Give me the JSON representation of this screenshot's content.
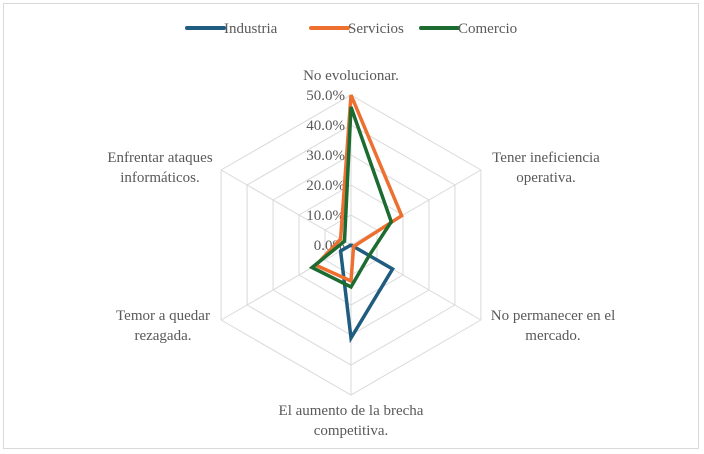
{
  "chart_data": {
    "type": "radar",
    "title": "",
    "categories": [
      "No evolucionar.",
      "Tener ineficiencia operativa.",
      "No permanecer en el mercado.",
      "El aumento de la brecha competitiva.",
      "Temor a quedar rezagada.",
      "Enfrentar ataques informáticos."
    ],
    "category_lines": [
      [
        "No evolucionar."
      ],
      [
        "Tener ineficiencia",
        "operativa."
      ],
      [
        "No permanecer en el",
        "mercado."
      ],
      [
        "El aumento de la brecha",
        "competitiva."
      ],
      [
        "Temor a quedar",
        "rezagada."
      ],
      [
        "Enfrentar ataques",
        "informáticos."
      ]
    ],
    "series": [
      {
        "name": "Industria",
        "color": "#1f5c7f",
        "values": [
          0.5,
          0.0,
          16.0,
          31.0,
          4.0,
          0.0
        ]
      },
      {
        "name": "Servicios",
        "color": "#ed7031",
        "values": [
          50.0,
          19.5,
          1.0,
          12.0,
          13.5,
          4.0
        ]
      },
      {
        "name": "Comercio",
        "color": "#1c6b31",
        "values": [
          46.0,
          15.5,
          7.0,
          14.0,
          15.0,
          2.5
        ]
      }
    ],
    "radial_ticks": [
      "0.0%",
      "10.0%",
      "20.0%",
      "30.0%",
      "40.0%",
      "50.0%"
    ],
    "rlim": [
      0,
      50
    ],
    "grid": true,
    "legend_position": "top"
  }
}
